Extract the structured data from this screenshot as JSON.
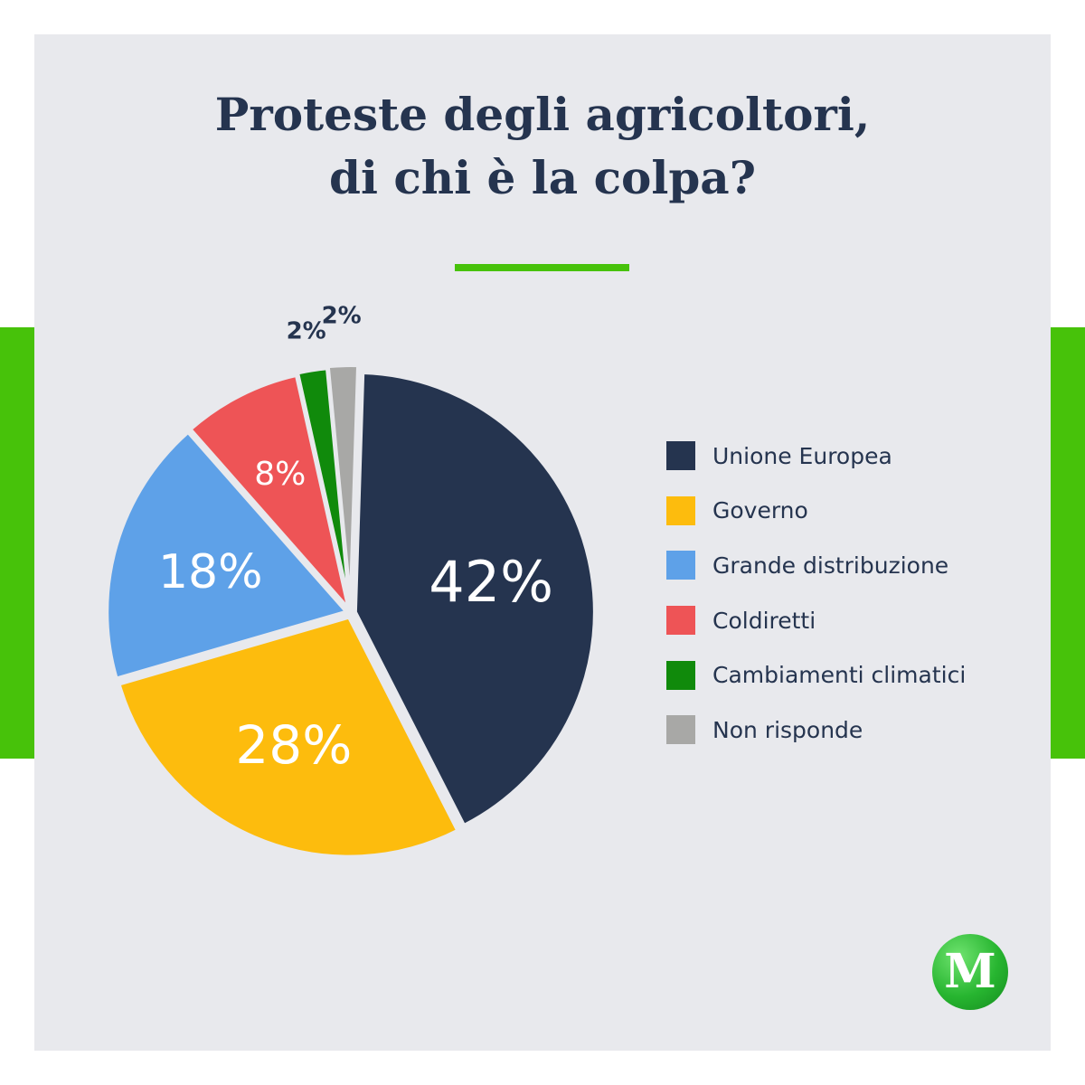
{
  "title": {
    "line1": "Proteste degli agricoltori,",
    "line2": "di chi è la colpa?"
  },
  "colors": {
    "background": "#ffffff",
    "card": "#e8e9ed",
    "accent_green": "#47c20a",
    "text": "#25344f",
    "slice_gap": "#e8e9ed"
  },
  "chart_data": {
    "type": "pie",
    "title": "Proteste degli agricoltori, di chi è la colpa?",
    "categories": [
      "Unione Europea",
      "Governo",
      "Grande distribuzione",
      "Coldiretti",
      "Cambiamenti climatici",
      "Non risponde"
    ],
    "values": [
      42,
      28,
      18,
      8,
      2,
      2
    ],
    "labels": [
      "42%",
      "28%",
      "18%",
      "8%",
      "2%",
      "2%"
    ],
    "colors": [
      "#25344f",
      "#fdbc0d",
      "#5ea1e8",
      "#ee5456",
      "#108a0b",
      "#a8a8a6"
    ],
    "legend_position": "right"
  },
  "legend": {
    "items": [
      {
        "label": "Unione Europea",
        "color": "#25344f"
      },
      {
        "label": "Governo",
        "color": "#fdbc0d"
      },
      {
        "label": "Grande distribuzione",
        "color": "#5ea1e8"
      },
      {
        "label": "Coldiretti",
        "color": "#ee5456"
      },
      {
        "label": "Cambiamenti climatici",
        "color": "#108a0b"
      },
      {
        "label": "Non risponde",
        "color": "#a8a8a6"
      }
    ]
  },
  "logo": {
    "letter": "M",
    "icon": "m-logo-icon"
  }
}
